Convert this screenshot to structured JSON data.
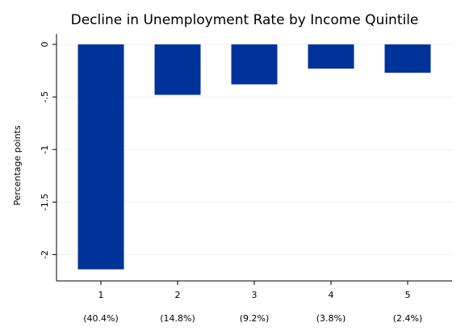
{
  "chart_data": {
    "type": "bar",
    "title": "Decline in Unemployment Rate by Income Quintile",
    "y_label": "Percentage points",
    "categories": [
      "1",
      "2",
      "3",
      "4",
      "5"
    ],
    "category_notes": [
      "(40.4%)",
      "(14.8%)",
      "(9.2%)",
      "(3.8%)",
      "(2.4%)"
    ],
    "values": [
      -2.14,
      -0.48,
      -0.38,
      -0.23,
      -0.27
    ],
    "color": "#003399",
    "ylim": [
      -2.25,
      0.1
    ],
    "yticks": [
      0,
      {
        "value": -0.5,
        "label": "-.5"
      },
      -1,
      {
        "value": -1.5,
        "label": "-1.5"
      },
      -2
    ],
    "grid": true
  }
}
